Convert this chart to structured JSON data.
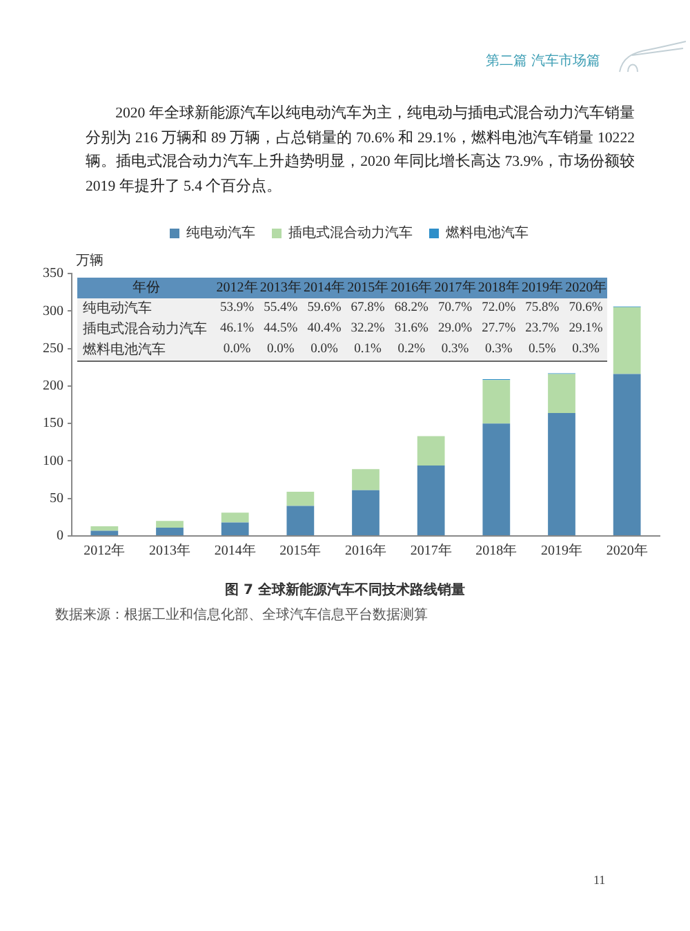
{
  "chart_data": {
    "type": "bar",
    "title": "图 7 全球新能源汽车不同技术路线销量",
    "ylabel": "万辆",
    "categories": [
      "2012年",
      "2013年",
      "2014年",
      "2015年",
      "2016年",
      "2017年",
      "2018年",
      "2019年",
      "2020年"
    ],
    "stacked": true,
    "series": [
      {
        "name": "纯电动汽车",
        "color": "#5188b2",
        "values": [
          7,
          11,
          18,
          40,
          61,
          94,
          150,
          164,
          216
        ]
      },
      {
        "name": "插电式混合动力汽车",
        "color": "#b4dba6",
        "values": [
          6,
          9,
          13,
          19,
          28,
          39,
          58,
          52,
          89
        ]
      },
      {
        "name": "燃料电池汽车",
        "color": "#2e8fc9",
        "values": [
          0,
          0,
          0,
          0,
          0,
          0,
          1,
          1,
          1
        ]
      }
    ],
    "ylim": [
      0,
      350
    ],
    "yticks": [
      0,
      50,
      100,
      150,
      200,
      250,
      300,
      350
    ],
    "grid": false,
    "legend": "top",
    "annotations": [
      "第二篇 汽车市场篇",
      "2020 年全球新能源汽车以纯电动汽车为主，纯电动与插电式混合动力汽车销量分别为 216 万辆和 89 万辆，占总销量的 70.6% 和 29.1%，燃料电池汽车销量 10222 辆。插电式混合动力汽车上升趋势明显，2020 年同比增长高达 73.9%，市场份额较 2019 年提升了 5.4 个百分点。",
      "数据来源：根据工业和信息化部、全球汽车信息平台数据测算",
      "11",
      "年份",
      "53.9%",
      "55.4%",
      "59.6%",
      "67.8%",
      "68.2%",
      "70.7%",
      "72.0%",
      "75.8%",
      "70.6%",
      "46.1%",
      "44.5%",
      "40.4%",
      "32.2%",
      "31.6%",
      "29.0%",
      "27.7%",
      "23.7%",
      "29.1%",
      "0.0%",
      "0.0%",
      "0.0%",
      "0.1%",
      "0.2%",
      "0.3%",
      "0.3%",
      "0.5%",
      "0.3%"
    ]
  }
}
